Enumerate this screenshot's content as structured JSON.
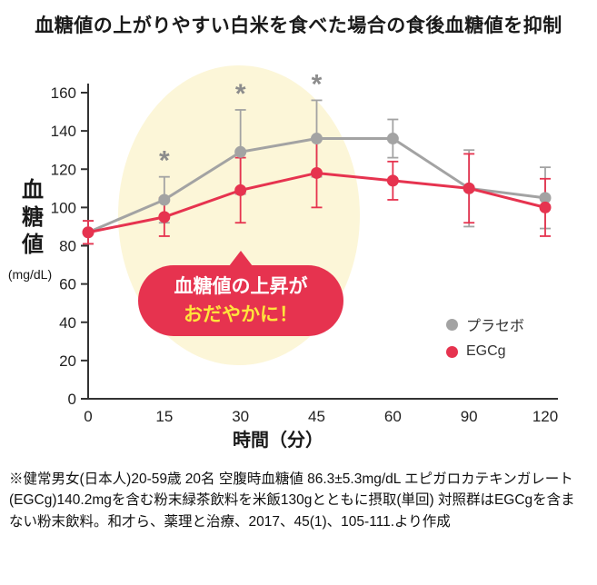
{
  "title": "血糖値の上がりやすい白米を食べた場合の食後血糖値を抑制",
  "y_axis": {
    "label": "血糖値",
    "unit": "(mg/dL)"
  },
  "x_axis": {
    "label": "時間（分）"
  },
  "callout": {
    "line1": "血糖値の上昇が",
    "line2": "おだやかに！",
    "bg_color": "#e6334f",
    "line1_color": "#ffffff",
    "line2_color": "#ffe43c"
  },
  "footnote": "※健常男女(日本人)20-59歳 20名 空腹時血糖値 86.3±5.3mg/dL エピガロカテキンガレート(EGCg)140.2mgを含む粉末緑茶飲料を米飯130gとともに摂取(単回) 対照群はEGCgを含まない粉末飲料。和才ら、薬理と治療、2017、45(1)、105-111.より作成",
  "chart_data": {
    "type": "line",
    "title": "血糖値の上がりやすい白米を食べた場合の食後血糖値を抑制",
    "categories": [
      "0",
      "15",
      "30",
      "45",
      "60",
      "90",
      "120"
    ],
    "xlabel": "時間（分）",
    "ylabel": "血糖値 (mg/dL)",
    "ylim": [
      0,
      160
    ],
    "ytick_step": 20,
    "grid": false,
    "legend_position": "right",
    "highlight_color": "#fcf6d8",
    "axis_color": "#333333",
    "series": [
      {
        "name": "プラセボ",
        "color": "#a3a3a3",
        "values": [
          87,
          104,
          129,
          136,
          136,
          110,
          105
        ],
        "errors": [
          6,
          12,
          22,
          20,
          10,
          20,
          16
        ]
      },
      {
        "name": "EGCg",
        "color": "#e6334f",
        "values": [
          87,
          95,
          109,
          118,
          114,
          110,
          100
        ],
        "errors": [
          6,
          10,
          17,
          18,
          10,
          18,
          15
        ]
      }
    ],
    "significance": {
      "symbol": "*",
      "series": "プラセボ",
      "at_categories": [
        "15",
        "30",
        "45"
      ],
      "color": "#8c8c8c"
    }
  }
}
